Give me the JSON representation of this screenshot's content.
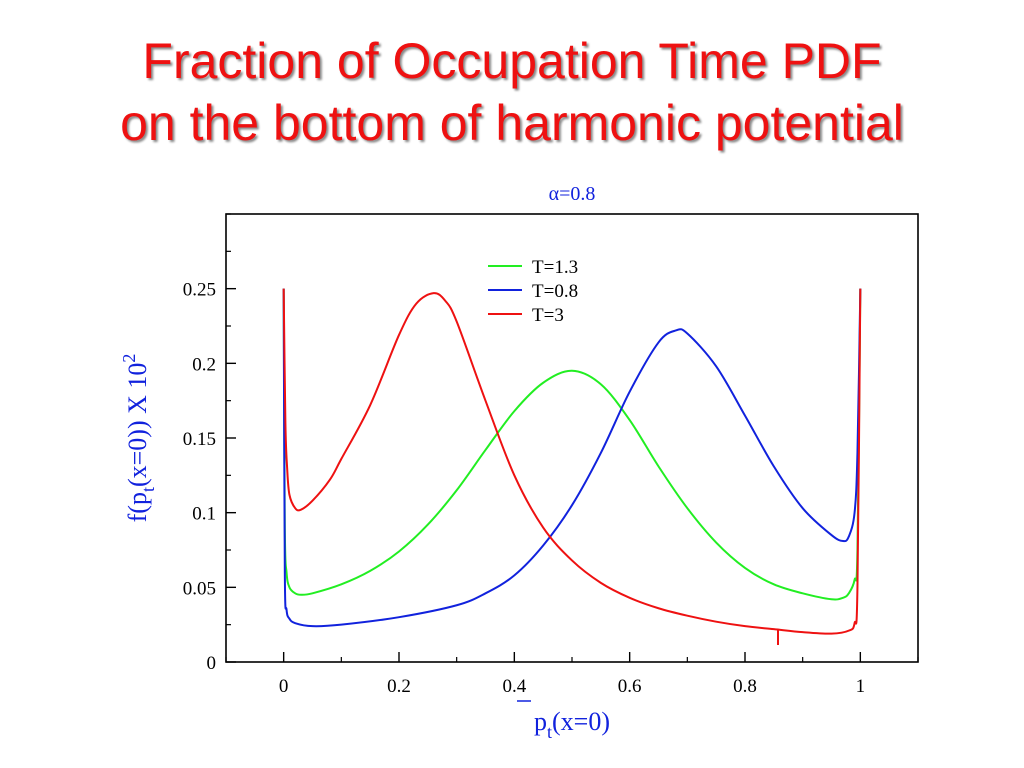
{
  "slide": {
    "title_line1": "Fraction of Occupation Time PDF",
    "title_line2": "on the bottom of harmonic potential"
  },
  "chart_data": {
    "type": "line",
    "title": "α=0.8",
    "xlabel_main": "p",
    "xlabel_sub": "t",
    "xlabel_rest": "(x=0)",
    "ylabel_pre": "f(p",
    "ylabel_sub": "t",
    "ylabel_mid": "(x=0)) X 10",
    "ylabel_sup": "2",
    "xlim": [
      -0.1,
      1.1
    ],
    "ylim": [
      0,
      0.3
    ],
    "xticks": [
      0,
      0.2,
      0.4,
      0.6,
      0.8,
      1
    ],
    "xtick_labels": [
      "0",
      "0.2",
      "0.4",
      "0.6",
      "0.8",
      "1"
    ],
    "yticks": [
      0,
      0.05,
      0.1,
      0.15,
      0.2,
      0.25
    ],
    "ytick_labels": [
      "0",
      "0.05",
      "0.1",
      "0.15",
      "0.2",
      "0.25"
    ],
    "grid": false,
    "legend_position": "top-center",
    "series": [
      {
        "name": "T=1.3",
        "color": "#22ee22",
        "x": [
          0,
          0.002,
          0.005,
          0.01,
          0.02,
          0.03,
          0.05,
          0.1,
          0.15,
          0.2,
          0.25,
          0.3,
          0.35,
          0.4,
          0.45,
          0.5,
          0.55,
          0.6,
          0.65,
          0.7,
          0.75,
          0.8,
          0.85,
          0.9,
          0.95,
          0.97,
          0.98,
          0.99,
          0.995,
          1
        ],
        "y": [
          0.25,
          0.09,
          0.06,
          0.05,
          0.046,
          0.045,
          0.046,
          0.052,
          0.061,
          0.074,
          0.092,
          0.115,
          0.142,
          0.168,
          0.187,
          0.195,
          0.186,
          0.162,
          0.131,
          0.103,
          0.08,
          0.063,
          0.052,
          0.046,
          0.042,
          0.043,
          0.046,
          0.055,
          0.075,
          0.25
        ]
      },
      {
        "name": "T=0.8",
        "color": "#1122dd",
        "x": [
          0,
          0.002,
          0.005,
          0.01,
          0.02,
          0.05,
          0.1,
          0.2,
          0.3,
          0.35,
          0.4,
          0.45,
          0.5,
          0.55,
          0.6,
          0.65,
          0.68,
          0.7,
          0.75,
          0.8,
          0.85,
          0.9,
          0.95,
          0.97,
          0.98,
          0.99,
          0.995,
          1
        ],
        "y": [
          0.25,
          0.06,
          0.035,
          0.029,
          0.026,
          0.024,
          0.025,
          0.03,
          0.038,
          0.046,
          0.058,
          0.078,
          0.105,
          0.14,
          0.181,
          0.214,
          0.222,
          0.22,
          0.198,
          0.165,
          0.131,
          0.103,
          0.085,
          0.081,
          0.084,
          0.1,
          0.14,
          0.25
        ]
      },
      {
        "name": "T=3",
        "color": "#ee1111",
        "x": [
          0,
          0.003,
          0.006,
          0.01,
          0.02,
          0.03,
          0.05,
          0.08,
          0.1,
          0.15,
          0.2,
          0.23,
          0.26,
          0.28,
          0.3,
          0.35,
          0.4,
          0.45,
          0.5,
          0.55,
          0.6,
          0.65,
          0.7,
          0.75,
          0.8,
          0.85,
          0.9,
          0.95,
          0.98,
          0.99,
          0.995,
          1
        ],
        "y": [
          0.25,
          0.16,
          0.13,
          0.112,
          0.103,
          0.102,
          0.108,
          0.122,
          0.136,
          0.172,
          0.219,
          0.24,
          0.247,
          0.242,
          0.228,
          0.175,
          0.125,
          0.09,
          0.068,
          0.053,
          0.043,
          0.036,
          0.031,
          0.027,
          0.024,
          0.022,
          0.02,
          0.019,
          0.021,
          0.026,
          0.05,
          0.25
        ]
      }
    ]
  }
}
